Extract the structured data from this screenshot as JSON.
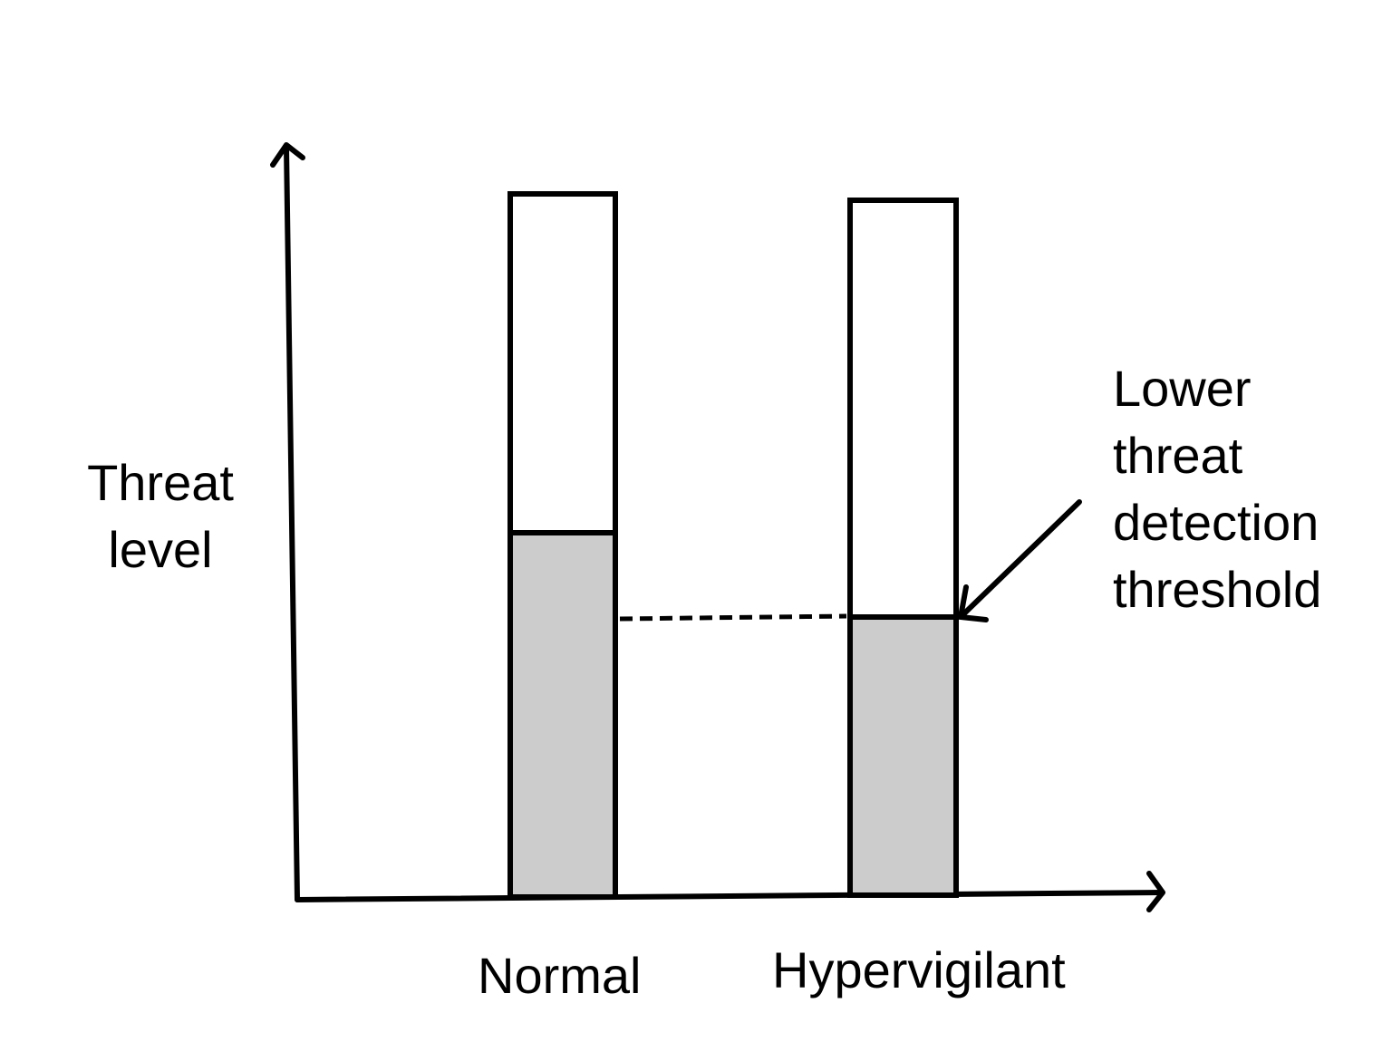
{
  "y_axis_label": [
    "Threat",
    "level"
  ],
  "categories": [
    "Normal",
    "Hypervigilant"
  ],
  "annotation": [
    "Lower",
    "threat",
    "detection",
    "threshold"
  ],
  "colors": {
    "fill": "#cccccc",
    "stroke": "#000000",
    "background": "#ffffff"
  }
}
